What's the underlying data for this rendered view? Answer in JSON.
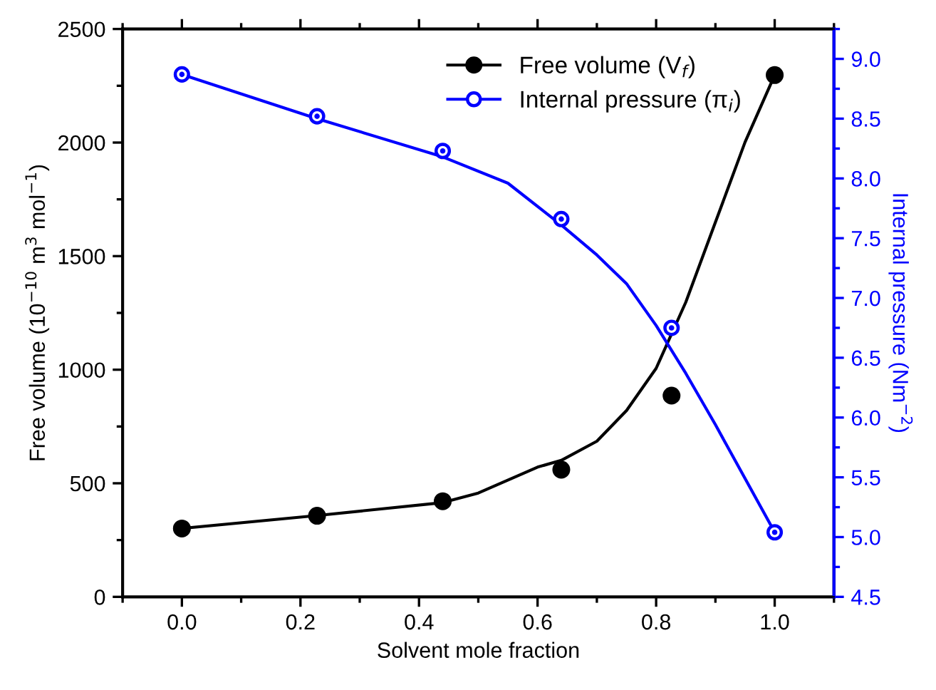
{
  "chart_data": {
    "type": "scatter",
    "xlabel": "Solvent mole fraction",
    "ylabel": "Free volume (10$^{−10}$ m$^{3}$ mol$^{−1}$)",
    "y2label": "Internal pressure (Nm$^{−2}$)",
    "xlim": [
      -0.1,
      1.1
    ],
    "xticks": [
      {
        "value": 0,
        "label": "0.0"
      },
      0.2,
      0.4,
      0.6,
      0.8,
      {
        "value": 1,
        "label": "1.0"
      }
    ],
    "ylim": [
      0,
      2500
    ],
    "yticks": [
      0,
      500,
      1000,
      1500,
      2000,
      2500
    ],
    "y2lim": [
      4.5,
      9.25
    ],
    "y2ticks": [
      4.5,
      {
        "value": 5,
        "label": "5.0"
      },
      5.5,
      {
        "value": 6,
        "label": "6.0"
      },
      6.5,
      {
        "value": 7,
        "label": "7.0"
      },
      7.5,
      {
        "value": 8,
        "label": "8.0"
      },
      8.5,
      {
        "value": 9,
        "label": "9.0"
      }
    ],
    "legend": "top right",
    "grid": false,
    "series": [
      {
        "name": "Free volume (V$_{f}$)",
        "marker": "circle",
        "color": "#000000",
        "x": [
          0,
          0.228,
          0.44,
          0.64,
          0.826,
          1.0
        ],
        "values": [
          301,
          357,
          421,
          560,
          886,
          2297
        ]
      },
      {
        "name": "Internal pressure (π$_{i}$)",
        "marker": "circle",
        "axis": "y2",
        "color": "#0000ff",
        "x": [
          0,
          0.228,
          0.44,
          0.64,
          0.826,
          1.0
        ],
        "values": [
          8.87,
          8.52,
          8.23,
          7.66,
          6.75,
          5.04
        ]
      },
      {
        "type": "line",
        "color": "#000000",
        "x": [
          0,
          0.228,
          0.44,
          0.5,
          0.6,
          0.64,
          0.7,
          0.75,
          0.8,
          0.85,
          0.9,
          0.95,
          1.0
        ],
        "values": [
          301,
          358,
          415,
          457,
          571,
          601,
          685,
          820,
          1006,
          1297,
          1649,
          2002,
          2297
        ]
      },
      {
        "type": "line",
        "axis": "y2",
        "color": "#0000ff",
        "x": [
          0,
          0.228,
          0.44,
          0.55,
          0.64,
          0.7,
          0.75,
          0.8,
          0.85,
          0.9,
          0.95,
          1.0
        ],
        "values": [
          8.87,
          8.5,
          8.18,
          7.96,
          7.61,
          7.36,
          7.12,
          6.77,
          6.37,
          5.94,
          5.49,
          5.04
        ]
      }
    ]
  }
}
